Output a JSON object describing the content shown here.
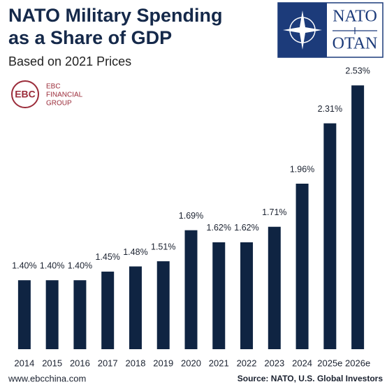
{
  "chart_data": {
    "type": "bar",
    "title": [
      "NATO Military Spending",
      "as a Share of GDP"
    ],
    "subtitle": "Based on 2021 Prices",
    "categories": [
      "2014",
      "2015",
      "2016",
      "2017",
      "2018",
      "2019",
      "2020",
      "2021",
      "2022",
      "2023",
      "2024",
      "2025e",
      "2026e"
    ],
    "values": [
      1.4,
      1.4,
      1.4,
      1.45,
      1.48,
      1.51,
      1.69,
      1.62,
      1.62,
      1.71,
      1.96,
      2.31,
      2.53
    ],
    "value_labels": [
      "1.40%",
      "1.40%",
      "1.40%",
      "1.45%",
      "1.48%",
      "1.51%",
      "1.69%",
      "1.62%",
      "1.62%",
      "1.71%",
      "1.96%",
      "2.31%",
      "2.53%"
    ],
    "color": "#0f2442",
    "ylim": [
      1.0,
      2.6
    ],
    "annotations": {
      "ebc_logo": [
        "EBC",
        "FINANCIAL",
        "GROUP"
      ],
      "nato_logo": [
        "NATO",
        "OTAN"
      ],
      "website": "www.ebcchina.com",
      "source": "Source: NATO, U.S. Global Investors"
    }
  }
}
